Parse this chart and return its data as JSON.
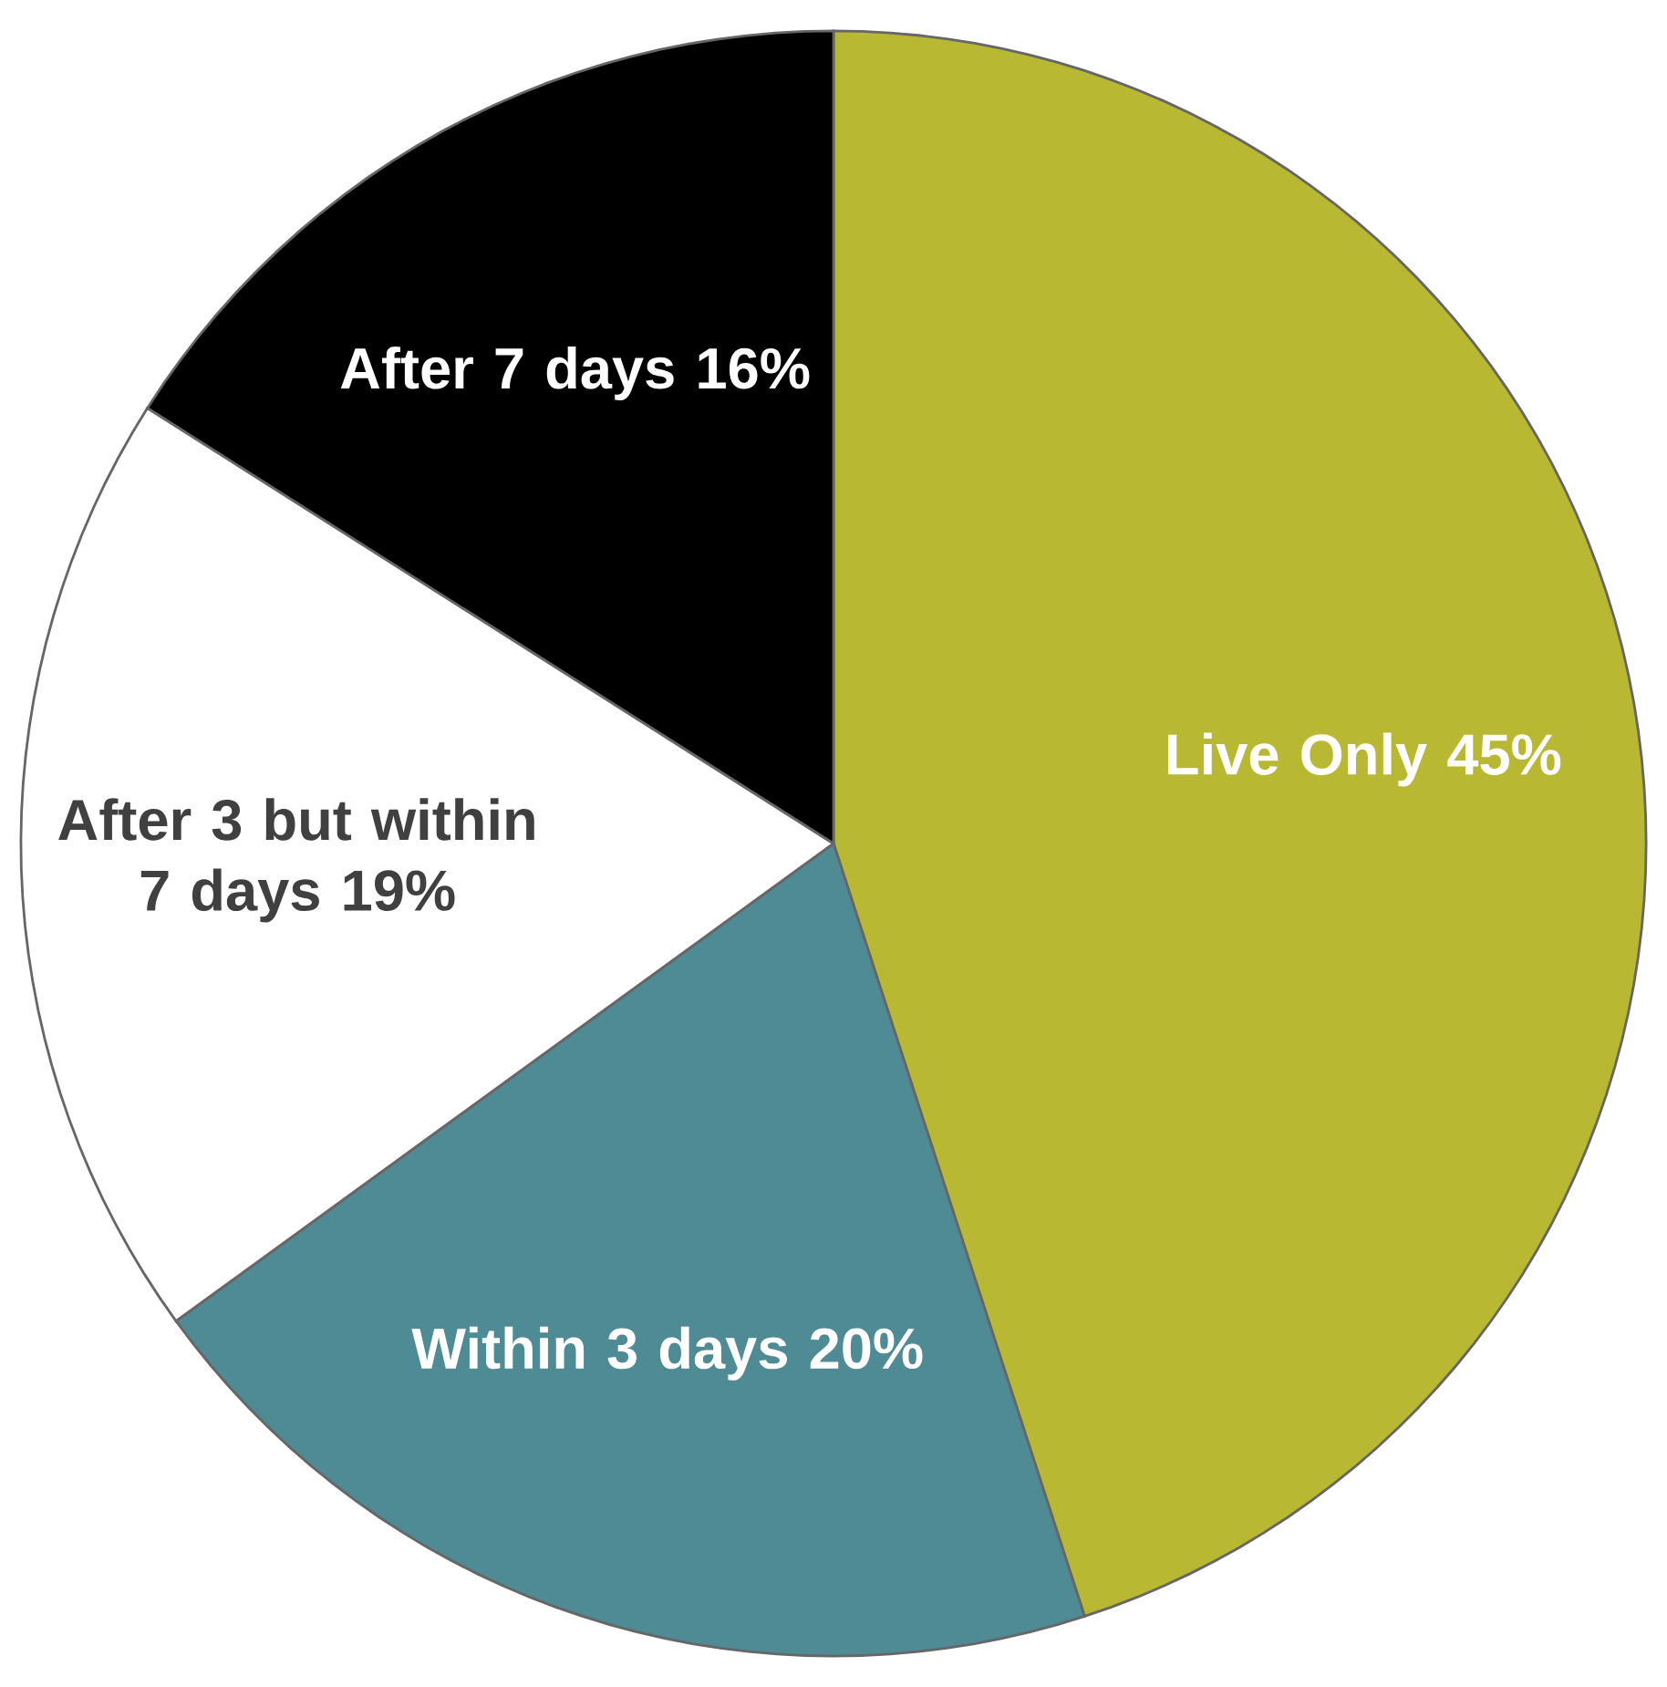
{
  "chart_data": {
    "type": "pie",
    "categories": [
      "Live Only",
      "Within 3 days",
      "After 3 but within 7 days",
      "After 7 days"
    ],
    "values": [
      45,
      20,
      19,
      16
    ],
    "value_labels": [
      "45%",
      "20%",
      "19%",
      "16%"
    ],
    "colors": [
      "#b8b832",
      "#4e8b94",
      "#ffffff",
      "#000000"
    ]
  }
}
